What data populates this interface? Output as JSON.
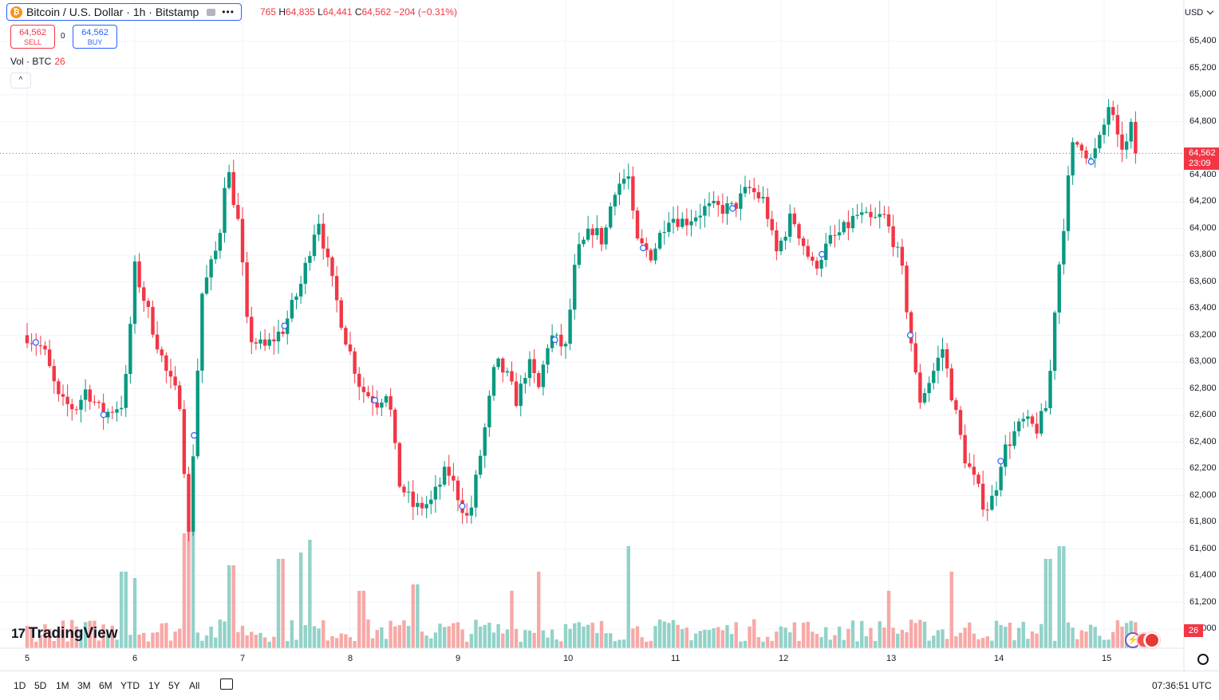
{
  "header": {
    "symbol_title": "Bitcoin / U.S. Dollar · 1h · Bitstamp",
    "coin_glyph": "₿",
    "ohlc": {
      "o_value": "765",
      "h_label": "H",
      "h_value": "64,835",
      "l_label": "L",
      "l_value": "64,441",
      "c_label": "C",
      "c_value": "64,562",
      "change": "−204 (−0.31%)"
    },
    "sell_price": "64,562",
    "sell_label": "SELL",
    "spread": "0",
    "buy_price": "64,562",
    "buy_label": "BUY",
    "volume_legend_label": "Vol · BTC",
    "volume_legend_value": "26",
    "collapse_glyph": "^"
  },
  "price_scale": {
    "currency": "USD",
    "ticks": [
      "65,400",
      "65,200",
      "65,000",
      "64,800",
      "64,400",
      "64,200",
      "64,000",
      "63,800",
      "63,600",
      "63,400",
      "63,200",
      "63,000",
      "62,800",
      "62,600",
      "62,400",
      "62,200",
      "62,000",
      "61,800",
      "61,600",
      "61,400",
      "61,200",
      "61,000"
    ],
    "last_price_label": "64,562",
    "countdown": "23:09",
    "volume_last_label": "26"
  },
  "time_scale": {
    "ticks": [
      "5",
      "6",
      "7",
      "8",
      "9",
      "10",
      "11",
      "12",
      "13",
      "14",
      "15"
    ]
  },
  "brand": {
    "name": "TradingView",
    "mark": "17"
  },
  "bottom_bar": {
    "ranges": [
      "1D",
      "5D",
      "1M",
      "3M",
      "6M",
      "YTD",
      "1Y",
      "5Y",
      "All"
    ],
    "clock": "07:36:51 UTC"
  },
  "colors": {
    "up": "#089981",
    "down": "#f23645",
    "up_volume": "#92d2c8",
    "down_volume": "#f7a9a7",
    "grid": "#f0f3fa",
    "accent": "#2962ff"
  },
  "chart_data": {
    "type": "candlestick",
    "interval": "1h",
    "days": [
      "5",
      "6",
      "7",
      "8",
      "9",
      "10",
      "11",
      "12",
      "13",
      "14",
      "15"
    ],
    "ylim": [
      60900,
      65500
    ],
    "last_price": 64562,
    "anchors": [
      {
        "day": 5.0,
        "price": 63200
      },
      {
        "day": 5.15,
        "price": 63100
      },
      {
        "day": 5.3,
        "price": 62700
      },
      {
        "day": 5.45,
        "price": 62650
      },
      {
        "day": 5.55,
        "price": 62800
      },
      {
        "day": 5.7,
        "price": 62600
      },
      {
        "day": 5.9,
        "price": 62700
      },
      {
        "day": 6.0,
        "price": 63700
      },
      {
        "day": 6.15,
        "price": 63300
      },
      {
        "day": 6.3,
        "price": 62900
      },
      {
        "day": 6.42,
        "price": 62700
      },
      {
        "day": 6.5,
        "price": 61700
      },
      {
        "day": 6.62,
        "price": 63500
      },
      {
        "day": 6.78,
        "price": 63900
      },
      {
        "day": 6.85,
        "price": 64500
      },
      {
        "day": 6.97,
        "price": 64000
      },
      {
        "day": 7.05,
        "price": 63200
      },
      {
        "day": 7.2,
        "price": 63100
      },
      {
        "day": 7.38,
        "price": 63250
      },
      {
        "day": 7.55,
        "price": 63600
      },
      {
        "day": 7.7,
        "price": 64100
      },
      {
        "day": 7.8,
        "price": 63700
      },
      {
        "day": 7.95,
        "price": 63200
      },
      {
        "day": 8.1,
        "price": 62800
      },
      {
        "day": 8.25,
        "price": 62700
      },
      {
        "day": 8.35,
        "price": 62800
      },
      {
        "day": 8.45,
        "price": 62100
      },
      {
        "day": 8.6,
        "price": 61900
      },
      {
        "day": 8.75,
        "price": 61950
      },
      {
        "day": 8.9,
        "price": 62200
      },
      {
        "day": 9.0,
        "price": 62000
      },
      {
        "day": 9.1,
        "price": 61800
      },
      {
        "day": 9.25,
        "price": 62500
      },
      {
        "day": 9.35,
        "price": 63000
      },
      {
        "day": 9.45,
        "price": 62900
      },
      {
        "day": 9.55,
        "price": 62700
      },
      {
        "day": 9.65,
        "price": 63000
      },
      {
        "day": 9.75,
        "price": 62800
      },
      {
        "day": 9.85,
        "price": 63200
      },
      {
        "day": 10.0,
        "price": 63100
      },
      {
        "day": 10.1,
        "price": 63800
      },
      {
        "day": 10.25,
        "price": 64000
      },
      {
        "day": 10.35,
        "price": 63900
      },
      {
        "day": 10.45,
        "price": 64300
      },
      {
        "day": 10.58,
        "price": 64400
      },
      {
        "day": 10.65,
        "price": 63900
      },
      {
        "day": 10.8,
        "price": 63800
      },
      {
        "day": 10.95,
        "price": 64100
      },
      {
        "day": 11.1,
        "price": 64050
      },
      {
        "day": 11.3,
        "price": 64150
      },
      {
        "day": 11.55,
        "price": 64150
      },
      {
        "day": 11.7,
        "price": 64300
      },
      {
        "day": 11.85,
        "price": 64200
      },
      {
        "day": 11.95,
        "price": 63800
      },
      {
        "day": 12.1,
        "price": 64100
      },
      {
        "day": 12.2,
        "price": 63900
      },
      {
        "day": 12.3,
        "price": 63700
      },
      {
        "day": 12.45,
        "price": 63900
      },
      {
        "day": 12.6,
        "price": 64000
      },
      {
        "day": 12.7,
        "price": 64100
      },
      {
        "day": 12.85,
        "price": 64050
      },
      {
        "day": 12.95,
        "price": 64100
      },
      {
        "day": 13.0,
        "price": 64000
      },
      {
        "day": 13.05,
        "price": 63900
      },
      {
        "day": 13.12,
        "price": 63700
      },
      {
        "day": 13.2,
        "price": 63200
      },
      {
        "day": 13.28,
        "price": 62700
      },
      {
        "day": 13.4,
        "price": 62900
      },
      {
        "day": 13.5,
        "price": 63100
      },
      {
        "day": 13.6,
        "price": 62700
      },
      {
        "day": 13.7,
        "price": 62300
      },
      {
        "day": 13.8,
        "price": 62100
      },
      {
        "day": 13.9,
        "price": 61900
      },
      {
        "day": 13.98,
        "price": 62000
      },
      {
        "day": 14.05,
        "price": 62300
      },
      {
        "day": 14.15,
        "price": 62450
      },
      {
        "day": 14.25,
        "price": 62550
      },
      {
        "day": 14.38,
        "price": 62500
      },
      {
        "day": 14.48,
        "price": 62700
      },
      {
        "day": 14.55,
        "price": 63500
      },
      {
        "day": 14.62,
        "price": 64000
      },
      {
        "day": 14.7,
        "price": 64600
      },
      {
        "day": 14.78,
        "price": 64650
      },
      {
        "day": 14.88,
        "price": 64500
      },
      {
        "day": 14.98,
        "price": 64700
      },
      {
        "day": 15.05,
        "price": 64950
      },
      {
        "day": 15.12,
        "price": 64650
      },
      {
        "day": 15.2,
        "price": 64600
      },
      {
        "day": 15.25,
        "price": 64750
      },
      {
        "day": 15.3,
        "price": 64562
      }
    ],
    "volume_peaks": [
      {
        "day": 6.53,
        "value": 1.0
      },
      {
        "day": 6.45,
        "value": 0.9
      },
      {
        "day": 7.63,
        "value": 0.85
      },
      {
        "day": 10.58,
        "value": 0.8
      },
      {
        "day": 14.6,
        "value": 0.8
      },
      {
        "day": 14.48,
        "value": 0.7
      },
      {
        "day": 6.9,
        "value": 0.65
      },
      {
        "day": 7.35,
        "value": 0.7
      },
      {
        "day": 7.55,
        "value": 0.75
      },
      {
        "day": 8.1,
        "value": 0.45
      },
      {
        "day": 8.6,
        "value": 0.5
      },
      {
        "day": 9.5,
        "value": 0.45
      },
      {
        "day": 9.75,
        "value": 0.6
      },
      {
        "day": 13.0,
        "value": 0.45
      },
      {
        "day": 13.58,
        "value": 0.6
      },
      {
        "day": 5.9,
        "value": 0.6
      },
      {
        "day": 6.0,
        "value": 0.55
      }
    ],
    "event_markers": [
      5.08,
      5.71,
      6.55,
      7.39,
      8.23,
      9.04,
      9.9,
      10.72,
      11.55,
      12.38,
      13.2,
      14.04,
      14.88
    ]
  }
}
